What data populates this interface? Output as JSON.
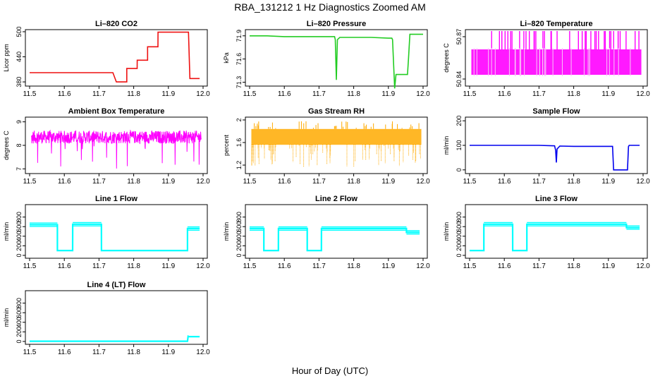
{
  "title": "RBA_131212  1 Hz Diagnostics Zoomed AM",
  "xlabel": "Hour of Day (UTC)",
  "chart_data": [
    {
      "type": "line",
      "title": "Li–820 CO2",
      "ylabel": "Licor ppm",
      "color": "#ee1111",
      "xlim": [
        11.5,
        12.0
      ],
      "ylim": [
        370,
        505
      ],
      "xticks": [
        11.5,
        11.6,
        11.7,
        11.8,
        11.9,
        12.0
      ],
      "yticks": [
        380,
        440,
        500
      ],
      "series": [
        {
          "x": [
            11.5,
            11.55,
            11.6,
            11.65,
            11.7,
            11.74,
            11.7501,
            11.78,
            11.7801,
            11.81,
            11.8101,
            11.84,
            11.8401,
            11.87,
            11.8701,
            11.9,
            11.95,
            11.958,
            11.962,
            11.99
          ],
          "y": [
            402,
            402,
            402,
            402,
            402,
            402,
            380,
            380,
            412,
            412,
            432,
            432,
            464,
            464,
            499,
            499,
            499,
            499,
            388,
            388
          ]
        }
      ]
    },
    {
      "type": "line",
      "title": "Li–820 Pressure",
      "ylabel": "kPa",
      "color": "#22cc22",
      "xlim": [
        11.5,
        12.0
      ],
      "ylim": [
        71.25,
        71.98
      ],
      "xticks": [
        11.5,
        11.6,
        11.7,
        11.8,
        11.9,
        12.0
      ],
      "yticks": [
        71.3,
        71.6,
        71.9
      ],
      "series": [
        {
          "x": [
            11.5,
            11.55,
            11.6,
            11.65,
            11.7,
            11.745,
            11.747,
            11.75,
            11.753,
            11.76,
            11.8,
            11.85,
            11.9,
            11.91,
            11.912,
            11.918,
            11.922,
            11.93,
            11.955,
            11.958,
            11.962,
            11.97,
            12.0
          ],
          "y": [
            71.9,
            71.9,
            71.89,
            71.89,
            71.89,
            71.89,
            71.85,
            71.33,
            71.85,
            71.88,
            71.88,
            71.88,
            71.87,
            71.87,
            71.85,
            71.22,
            71.4,
            71.4,
            71.4,
            71.6,
            71.92,
            71.92,
            71.92
          ]
        }
      ]
    },
    {
      "type": "line",
      "title": "Li–820 Temperature",
      "ylabel": "degrees C",
      "color": "#ff00ff",
      "xlim": [
        11.5,
        12.0
      ],
      "ylim": [
        50.835,
        50.875
      ],
      "xticks": [
        11.5,
        11.6,
        11.7,
        11.8,
        11.9,
        12.0
      ],
      "yticks": [
        50.84,
        50.87
      ],
      "series": [
        {
          "x": [
            11.5,
            12.0
          ],
          "y": [
            50.843,
            50.861
          ]
        }
      ]
    },
    {
      "type": "line",
      "title": "Ambient Box Temperature",
      "ylabel": "degrees C",
      "color": "#ff00ff",
      "xlim": [
        11.5,
        12.0
      ],
      "ylim": [
        6.8,
        9.2
      ],
      "xticks": [
        11.5,
        11.6,
        11.7,
        11.8,
        11.9,
        12.0
      ],
      "yticks": [
        7.0,
        8.0,
        9.0
      ],
      "series": [
        {
          "x": [
            11.5,
            12.0
          ],
          "y": [
            8.0,
            8.7
          ]
        }
      ]
    },
    {
      "type": "line",
      "title": "Gas Stream RH",
      "ylabel": "percent",
      "color": "#ffaa00",
      "xlim": [
        11.5,
        12.0
      ],
      "ylim": [
        1.05,
        2.05
      ],
      "xticks": [
        11.5,
        11.6,
        11.7,
        11.8,
        11.9,
        12.0
      ],
      "yticks": [
        1.2,
        1.6,
        2.0
      ],
      "series": [
        {
          "x": [
            11.5,
            12.0
          ],
          "y": [
            1.55,
            1.85
          ]
        }
      ]
    },
    {
      "type": "line",
      "title": "Sample Flow",
      "ylabel": "ml/min",
      "color": "#0000ee",
      "xlim": [
        11.5,
        12.0
      ],
      "ylim": [
        -15,
        215
      ],
      "xticks": [
        11.5,
        11.6,
        11.7,
        11.8,
        11.9,
        12.0
      ],
      "yticks": [
        0,
        100,
        200
      ],
      "series": [
        {
          "x": [
            11.5,
            11.6,
            11.7,
            11.745,
            11.748,
            11.75,
            11.752,
            11.76,
            11.8,
            11.85,
            11.9,
            11.912,
            11.915,
            11.955,
            11.958,
            11.96,
            11.99
          ],
          "y": [
            100,
            100,
            100,
            98,
            80,
            30,
            85,
            97,
            96,
            96,
            96,
            96,
            0,
            0,
            95,
            100,
            100
          ]
        }
      ]
    },
    {
      "type": "line",
      "title": "Line 1 Flow",
      "ylabel": "ml/min",
      "color": "#00ffff",
      "xlim": [
        11.5,
        12.0
      ],
      "ylim": [
        -60,
        1060
      ],
      "xticks": [
        11.5,
        11.6,
        11.7,
        11.8,
        11.9,
        12.0
      ],
      "yticks": [
        0,
        200,
        400,
        600,
        800
      ],
      "series": [
        {
          "x": [
            11.5,
            11.58,
            11.5801,
            11.624,
            11.6241,
            11.707,
            11.7071,
            11.8,
            11.9,
            11.955,
            11.9551,
            11.99
          ],
          "y": [
            640,
            640,
            100,
            100,
            650,
            650,
            100,
            100,
            100,
            100,
            560,
            560
          ]
        }
      ]
    },
    {
      "type": "line",
      "title": "Line 2 Flow",
      "ylabel": "ml/min",
      "color": "#00ffff",
      "xlim": [
        11.5,
        12.0
      ],
      "ylim": [
        -60,
        1060
      ],
      "xticks": [
        11.5,
        11.6,
        11.7,
        11.8,
        11.9,
        12.0
      ],
      "yticks": [
        0,
        200,
        400,
        600,
        800
      ],
      "series": [
        {
          "x": [
            11.5,
            11.541,
            11.5411,
            11.583,
            11.5831,
            11.666,
            11.6661,
            11.707,
            11.7071,
            11.8,
            11.9,
            11.952,
            11.9521,
            11.99
          ],
          "y": [
            560,
            560,
            100,
            100,
            560,
            560,
            100,
            100,
            560,
            560,
            560,
            560,
            480,
            480
          ]
        }
      ]
    },
    {
      "type": "line",
      "title": "Line 3 Flow",
      "ylabel": "ml/min",
      "color": "#00ffff",
      "xlim": [
        11.5,
        12.0
      ],
      "ylim": [
        -60,
        1060
      ],
      "xticks": [
        11.5,
        11.6,
        11.7,
        11.8,
        11.9,
        12.0
      ],
      "yticks": [
        0,
        200,
        400,
        600,
        800
      ],
      "series": [
        {
          "x": [
            11.5,
            11.541,
            11.5411,
            11.624,
            11.6241,
            11.665,
            11.6651,
            11.8,
            11.9,
            11.952,
            11.9521,
            11.99
          ],
          "y": [
            100,
            100,
            650,
            650,
            100,
            100,
            650,
            650,
            650,
            650,
            580,
            580
          ]
        }
      ]
    },
    {
      "type": "line",
      "title": "Line 4 (LT) Flow",
      "ylabel": "ml/min",
      "color": "#00ffff",
      "xlim": [
        11.5,
        12.0
      ],
      "ylim": [
        -60,
        1060
      ],
      "xticks": [
        11.5,
        11.6,
        11.7,
        11.8,
        11.9,
        12.0
      ],
      "yticks": [
        0,
        200,
        400,
        600,
        800
      ],
      "series": [
        {
          "x": [
            11.5,
            11.6,
            11.7,
            11.8,
            11.9,
            11.955,
            11.957,
            11.96,
            11.99
          ],
          "y": [
            5,
            5,
            5,
            5,
            5,
            5,
            110,
            100,
            100
          ]
        }
      ]
    }
  ]
}
